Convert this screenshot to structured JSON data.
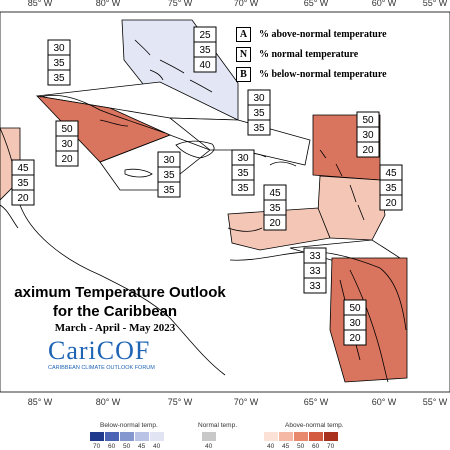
{
  "title": {
    "line1": "aximum Temperature Outlook",
    "line2": "for the Caribbean",
    "period": "March - April - May 2023"
  },
  "logo": {
    "name": "CariCOF",
    "subtitle": "CARIBBEAN CLIMATE OUTLOOK FORUM"
  },
  "key": [
    {
      "letter": "A",
      "text": "% above-normal temperature"
    },
    {
      "letter": "N",
      "text": "% normal temperature"
    },
    {
      "letter": "B",
      "text": "% below-normal temperature"
    }
  ],
  "longitudes": [
    "85° W",
    "80° W",
    "75° W",
    "70° W",
    "65° W",
    "60° W",
    "55° W"
  ],
  "zones": [
    {
      "id": "bahamas",
      "values": [
        "25",
        "35",
        "40"
      ],
      "color": "#e3e7f5"
    },
    {
      "id": "gulf",
      "values": [
        "30",
        "35",
        "35"
      ],
      "color": "#ffffff"
    },
    {
      "id": "cuba",
      "values": [
        "50",
        "30",
        "20"
      ],
      "color": "#d9745e"
    },
    {
      "id": "belize",
      "values": [
        "45",
        "35",
        "20"
      ],
      "color": "#f4c6b6"
    },
    {
      "id": "jamaica",
      "values": [
        "30",
        "35",
        "35"
      ],
      "color": "#ffffff"
    },
    {
      "id": "hispaniola",
      "values": [
        "30",
        "35",
        "35"
      ],
      "color": "#ffffff"
    },
    {
      "id": "puertorico",
      "values": [
        "30",
        "35",
        "35"
      ],
      "color": "#ffffff"
    },
    {
      "id": "leewards",
      "values": [
        "50",
        "30",
        "20"
      ],
      "color": "#d9745e"
    },
    {
      "id": "windwards",
      "values": [
        "45",
        "35",
        "20"
      ],
      "color": "#f4c6b6"
    },
    {
      "id": "abc",
      "values": [
        "45",
        "35",
        "20"
      ],
      "color": "#f4c6b6"
    },
    {
      "id": "trinidad",
      "values": [
        "33",
        "33",
        "33"
      ],
      "color": "#ffffff"
    },
    {
      "id": "guianas",
      "values": [
        "50",
        "30",
        "20"
      ],
      "color": "#d9745e"
    }
  ],
  "scale": {
    "below_label": "Below-normal temp.",
    "normal_label": "Normal temp.",
    "above_label": "Above-normal temp.",
    "below_ticks": [
      "70",
      "60",
      "50",
      "45",
      "40"
    ],
    "normal_ticks": [
      "40"
    ],
    "above_ticks": [
      "40",
      "45",
      "50",
      "60",
      "70"
    ],
    "below_colors": [
      "#1f3a8c",
      "#4a63b5",
      "#8597cf",
      "#b9c3e6",
      "#e0e4f3"
    ],
    "normal_colors": [
      "#c8c8c8"
    ],
    "above_colors": [
      "#fbe1d6",
      "#f4b8a4",
      "#e8896d",
      "#d35a3e",
      "#a8301d"
    ]
  }
}
